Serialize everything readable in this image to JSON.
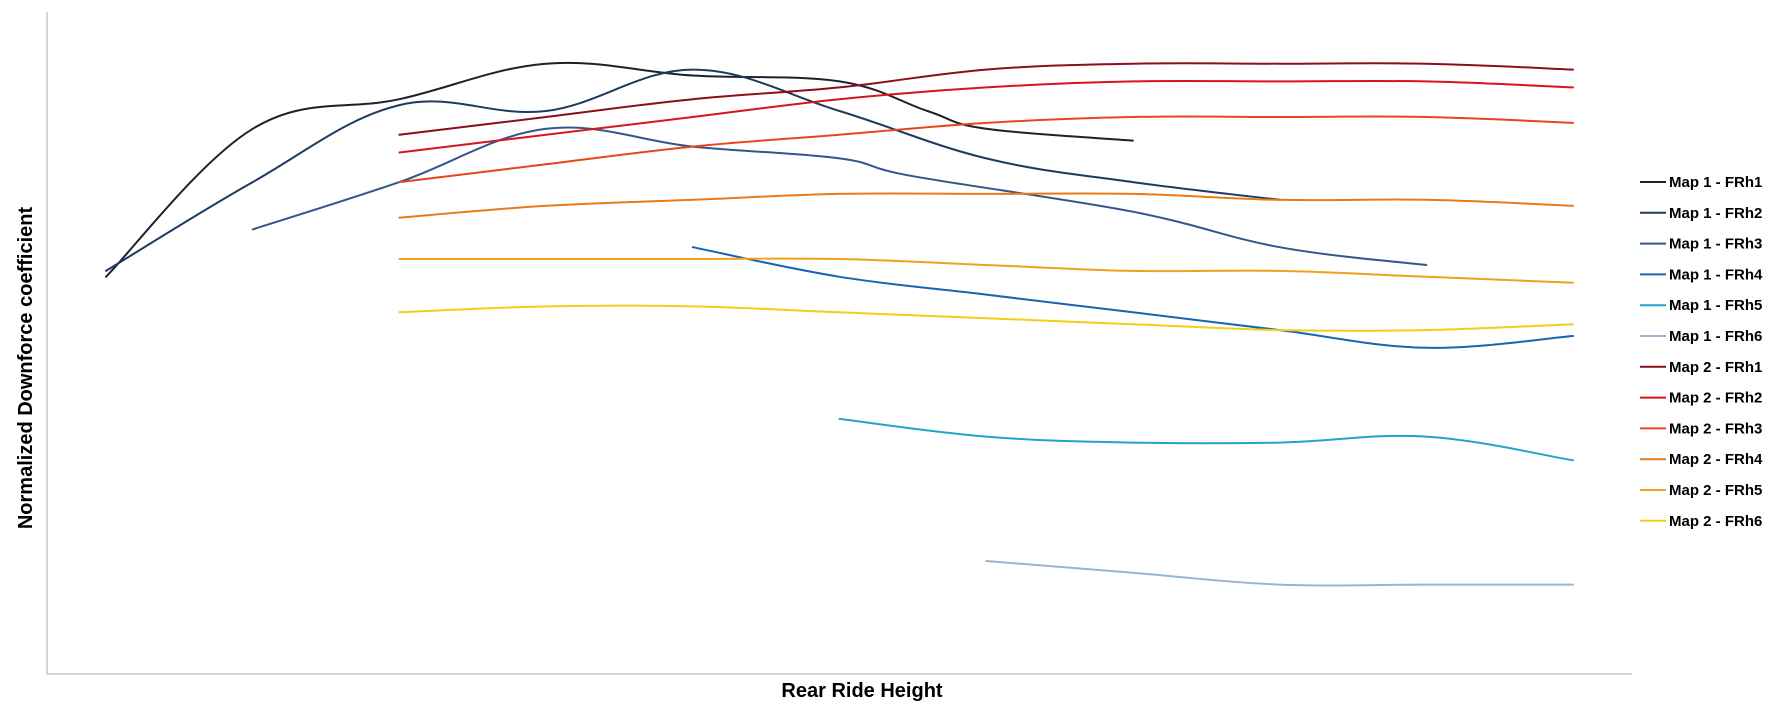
{
  "chart_data": {
    "type": "line",
    "title": "",
    "xlabel": "Rear Ride Height",
    "ylabel": "Normalized Downforce coefficient",
    "xlim": [
      0,
      100
    ],
    "ylim": [
      0,
      100
    ],
    "grid": false,
    "legend_position": "right",
    "series": [
      {
        "name": "Map 1 - FRh1",
        "color": "#1f1f2e",
        "x": [
          0,
          10,
          20,
          30,
          40,
          50,
          56,
          60,
          70
        ],
        "y": [
          60,
          85,
          90,
          96,
          94,
          93,
          88,
          85,
          83
        ]
      },
      {
        "name": "Map 1 - FRh2",
        "color": "#1f3a5f",
        "x": [
          0,
          10,
          20,
          30,
          40,
          50,
          60,
          70,
          80
        ],
        "y": [
          61,
          76,
          89,
          88,
          95,
          88,
          80,
          76,
          73
        ]
      },
      {
        "name": "Map 1 - FRh3",
        "color": "#34568b",
        "x": [
          10,
          20,
          30,
          40,
          50,
          55,
          70,
          80,
          90
        ],
        "y": [
          68,
          76,
          85,
          82,
          80,
          77,
          71,
          65,
          62
        ]
      },
      {
        "name": "Map 1 - FRh4",
        "color": "#1565b0",
        "x": [
          40,
          50,
          60,
          70,
          80,
          90,
          100
        ],
        "y": [
          65,
          60,
          57,
          54,
          51,
          48,
          50
        ]
      },
      {
        "name": "Map 1 - FRh5",
        "color": "#22a6c6",
        "x": [
          50,
          60,
          70,
          80,
          90,
          100
        ],
        "y": [
          36,
          33,
          32,
          32,
          33,
          29
        ]
      },
      {
        "name": "Map 1 - FRh6",
        "color": "#9ab3d3",
        "x": [
          60,
          70,
          80,
          90,
          100
        ],
        "y": [
          12,
          10,
          8,
          8,
          8
        ]
      },
      {
        "name": "Map 2 - FRh1",
        "color": "#8b0f1a",
        "x": [
          20,
          30,
          40,
          50,
          60,
          70,
          80,
          90,
          100
        ],
        "y": [
          84,
          87,
          90,
          92,
          95,
          96,
          96,
          96,
          95
        ]
      },
      {
        "name": "Map 2 - FRh2",
        "color": "#d6161c",
        "x": [
          20,
          30,
          40,
          50,
          60,
          70,
          80,
          90,
          100
        ],
        "y": [
          81,
          84,
          87,
          90,
          92,
          93,
          93,
          93,
          92
        ]
      },
      {
        "name": "Map 2 - FRh3",
        "color": "#e8461a",
        "x": [
          20,
          30,
          40,
          50,
          60,
          70,
          80,
          90,
          100
        ],
        "y": [
          76,
          79,
          82,
          84,
          86,
          87,
          87,
          87,
          86
        ]
      },
      {
        "name": "Map 2 - FRh4",
        "color": "#e87a1a",
        "x": [
          20,
          30,
          40,
          50,
          60,
          70,
          80,
          90,
          100
        ],
        "y": [
          70,
          72,
          73,
          74,
          74,
          74,
          73,
          73,
          72
        ]
      },
      {
        "name": "Map 2 - FRh5",
        "color": "#f2a01d",
        "x": [
          20,
          30,
          40,
          50,
          60,
          70,
          80,
          90,
          100
        ],
        "y": [
          63,
          63,
          63,
          63,
          62,
          61,
          61,
          60,
          59
        ]
      },
      {
        "name": "Map 2 - FRh6",
        "color": "#f2cd1b",
        "x": [
          20,
          30,
          40,
          50,
          60,
          70,
          80,
          90,
          100
        ],
        "y": [
          54,
          55,
          55,
          54,
          53,
          52,
          51,
          51,
          52
        ]
      }
    ]
  }
}
